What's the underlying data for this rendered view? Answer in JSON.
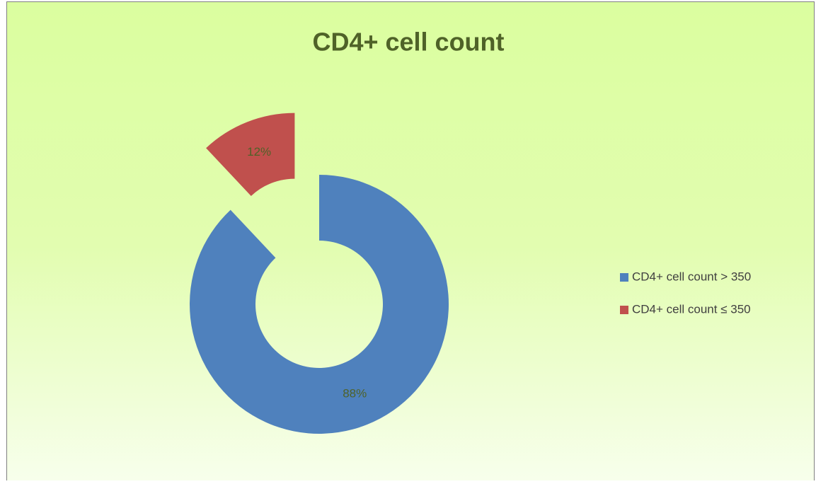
{
  "chart_data": {
    "type": "donut",
    "title": "CD4+ cell count",
    "categories": [
      "CD4+ cell count > 350",
      "CD4+ cell count ≤ 350"
    ],
    "values": [
      88,
      12
    ],
    "value_labels": [
      "88%",
      "12%"
    ],
    "colors": [
      "#4f81bd",
      "#c0504d"
    ],
    "legend": "right"
  }
}
